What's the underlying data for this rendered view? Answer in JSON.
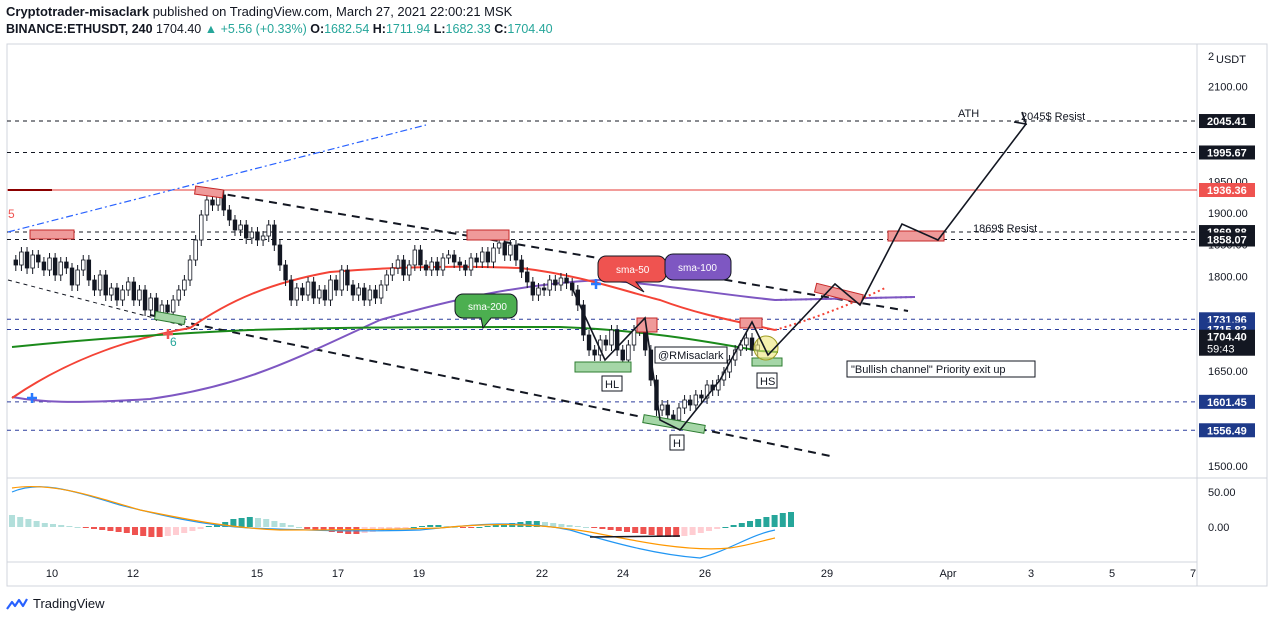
{
  "header": {
    "author": "Cryptotrader-misaclark",
    "published": "published on TradingView.com, March 27, 2021 22:00:21 MSK",
    "symbol": "BINANCE:ETHUSDT, 240",
    "last": "1704.40",
    "change": "▲ +5.56 (+0.33%)",
    "o_label": "O:",
    "o": "1682.54",
    "h_label": "H:",
    "h": "1711.94",
    "l_label": "L:",
    "l": "1682.33",
    "c_label": "C:",
    "c": "1704.40"
  },
  "footer": {
    "brand": "TradingView"
  },
  "colors": {
    "up": "#26a69a",
    "down": "#ef5350",
    "sma50": "#f44336",
    "sma100": "#7e57c2",
    "sma200": "#1b8a1b",
    "resist": "#ef9a9a"
  },
  "chart_data": {
    "type": "candlestick",
    "price_axis": {
      "unit": "USDT",
      "top_label": "2",
      "ylim": [
        1470,
        2140
      ],
      "ticks": [
        "2100.00",
        "1950.00",
        "1900.00",
        "1850.00",
        "1800.00",
        "1650.00",
        "1500.00"
      ],
      "tick_values": [
        2100,
        1950,
        1900,
        1850,
        1800,
        1650,
        1500
      ]
    },
    "price_badges": [
      {
        "value": 2045.41,
        "label": "2045.41",
        "bg": "#131722"
      },
      {
        "value": 1995.67,
        "label": "1995.67",
        "bg": "#131722"
      },
      {
        "value": 1936.36,
        "label": "1936.36",
        "bg": "#ef5350"
      },
      {
        "value": 1869.88,
        "label": "1869.88",
        "bg": "#131722"
      },
      {
        "value": 1858.07,
        "label": "1858.07",
        "bg": "#131722"
      },
      {
        "value": 1731.96,
        "label": "1731.96",
        "bg": "#1e3a8a"
      },
      {
        "value": 1715.83,
        "label": "1715.83",
        "bg": "#1e3a8a"
      },
      {
        "value": 1704.4,
        "label": "1704.40",
        "label2": "59:43",
        "bg": "#131722"
      },
      {
        "value": 1601.45,
        "label": "1601.45",
        "bg": "#1e3a8a"
      },
      {
        "value": 1556.49,
        "label": "1556.49",
        "bg": "#1e3a8a"
      }
    ],
    "x_ticks": [
      "10",
      "12",
      "15",
      "17",
      "19",
      "22",
      "24",
      "26",
      "29",
      "Apr",
      "3",
      "5",
      "7"
    ],
    "macd_axis": {
      "ticks": [
        "50.00",
        "0.00"
      ],
      "tick_values": [
        50,
        0
      ]
    },
    "annotations": {
      "ath": "ATH",
      "resist_2045": "2045$ Resist",
      "resist_1869": "1869$ Resist",
      "sma50": "sma-50",
      "sma100": "sma-100",
      "sma200": "sma-200",
      "author_tag": "@RMisaclark",
      "hl": "HL",
      "h": "H",
      "hs": "HS",
      "channel_note": "\"Bullish channel\" Priority exit up",
      "signal5": "5",
      "signal6": "6"
    }
  }
}
